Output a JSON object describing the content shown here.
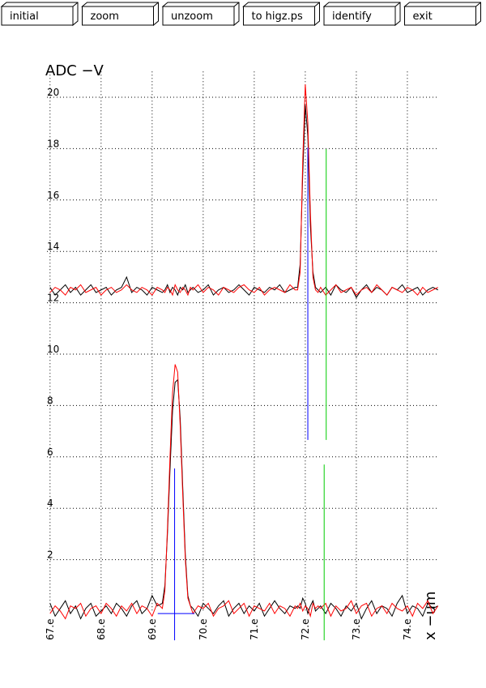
{
  "buttons": [
    "initial",
    "zoom",
    "unzoom",
    "to higz.ps",
    "identify",
    "exit"
  ],
  "chart_data": {
    "type": "line",
    "y_label": "ADC  −V",
    "x_label": "x −um",
    "xlim": [
      66.94,
      74.62
    ],
    "ylim": [
      0,
      21
    ],
    "xticks": [
      {
        "value": 67,
        "label": "67.e"
      },
      {
        "value": 68,
        "label": "68.e"
      },
      {
        "value": 69,
        "label": "69.e"
      },
      {
        "value": 70,
        "label": "70.e"
      },
      {
        "value": 71,
        "label": "71.e"
      },
      {
        "value": 72,
        "label": "72.e"
      },
      {
        "value": 73,
        "label": "73.e"
      },
      {
        "value": 74,
        "label": "74.e"
      }
    ],
    "yticks": [
      2,
      4,
      6,
      8,
      10,
      12,
      14,
      16,
      18,
      20
    ],
    "grid": true,
    "x": [
      67.0,
      67.1,
      67.2,
      67.3,
      67.4,
      67.5,
      67.6,
      67.7,
      67.8,
      67.9,
      68.0,
      68.1,
      68.2,
      68.3,
      68.4,
      68.5,
      68.6,
      68.7,
      68.8,
      68.9,
      69.0,
      69.1,
      69.2,
      69.25,
      69.3,
      69.35,
      69.4,
      69.45,
      69.5,
      69.55,
      69.6,
      69.65,
      69.7,
      69.75,
      69.8,
      69.9,
      70.0,
      70.1,
      70.2,
      70.3,
      70.4,
      70.5,
      70.6,
      70.7,
      70.8,
      70.9,
      71.0,
      71.1,
      71.2,
      71.3,
      71.4,
      71.5,
      71.6,
      71.7,
      71.8,
      71.85,
      71.9,
      71.95,
      72.0,
      72.05,
      72.1,
      72.15,
      72.2,
      72.25,
      72.3,
      72.4,
      72.5,
      72.6,
      72.7,
      72.8,
      72.9,
      73.0,
      73.1,
      73.2,
      73.3,
      73.4,
      73.5,
      73.6,
      73.7,
      73.8,
      73.9,
      74.0,
      74.1,
      74.2,
      74.3,
      74.4,
      74.5,
      74.6
    ],
    "series": [
      {
        "color": "#000000",
        "values": [
          0.3,
          -0.2,
          0.1,
          0.4,
          -0.1,
          0.2,
          -0.3,
          0.1,
          0.3,
          -0.2,
          0.0,
          0.2,
          -0.1,
          0.3,
          0.1,
          -0.2,
          0.2,
          0.4,
          -0.1,
          0.1,
          0.6,
          0.2,
          0.3,
          1.0,
          3.0,
          5.5,
          7.8,
          8.9,
          9.0,
          7.5,
          4.8,
          2.2,
          0.6,
          0.2,
          0.1,
          -0.2,
          0.3,
          0.1,
          -0.1,
          0.2,
          0.4,
          -0.2,
          0.1,
          0.3,
          -0.1,
          0.2,
          0.0,
          0.3,
          -0.2,
          0.1,
          0.4,
          0.1,
          -0.1,
          0.2,
          0.1,
          0.2,
          0.1,
          0.5,
          0.3,
          -0.1,
          0.2,
          0.4,
          0.0,
          0.1,
          0.2,
          -0.1,
          0.3,
          0.1,
          -0.2,
          0.2,
          0.0,
          0.3,
          -0.3,
          0.1,
          0.4,
          -0.1,
          0.2,
          0.1,
          -0.2,
          0.3,
          0.6,
          -0.1,
          0.2,
          0.1,
          -0.2,
          0.3,
          0.1,
          0.2
        ]
      },
      {
        "color": "#ff0000",
        "values": [
          -0.1,
          0.2,
          0.0,
          -0.3,
          0.2,
          0.1,
          0.3,
          -0.2,
          0.1,
          0.2,
          -0.1,
          0.3,
          0.1,
          -0.2,
          0.2,
          0.0,
          0.3,
          -0.1,
          0.2,
          0.1,
          -0.2,
          0.3,
          0.1,
          0.8,
          3.2,
          6.0,
          8.5,
          9.6,
          9.3,
          7.2,
          4.5,
          2.0,
          0.5,
          0.2,
          -0.1,
          0.2,
          0.1,
          0.3,
          -0.2,
          0.1,
          0.2,
          0.4,
          -0.1,
          0.1,
          0.3,
          -0.2,
          0.2,
          0.1,
          0.0,
          0.3,
          -0.1,
          0.2,
          0.1,
          -0.2,
          0.2,
          0.1,
          0.3,
          0.0,
          0.2,
          0.1,
          -0.2,
          0.3,
          0.1,
          0.2,
          0.1,
          0.3,
          -0.2,
          0.2,
          0.0,
          0.1,
          0.4,
          -0.1,
          0.2,
          0.3,
          -0.2,
          0.1,
          0.2,
          -0.1,
          0.3,
          0.1,
          0.0,
          0.2,
          -0.2,
          0.3,
          0.1,
          0.4,
          -0.1,
          0.2
        ]
      },
      {
        "color": "#000000",
        "values": [
          12.6,
          12.3,
          12.5,
          12.7,
          12.4,
          12.6,
          12.3,
          12.5,
          12.7,
          12.4,
          12.5,
          12.6,
          12.3,
          12.5,
          12.6,
          13.0,
          12.4,
          12.6,
          12.5,
          12.3,
          12.6,
          12.5,
          12.4,
          12.5,
          12.7,
          12.4,
          12.6,
          12.5,
          12.3,
          12.6,
          12.5,
          12.7,
          12.4,
          12.5,
          12.6,
          12.4,
          12.5,
          12.7,
          12.3,
          12.5,
          12.6,
          12.4,
          12.5,
          12.7,
          12.5,
          12.3,
          12.6,
          12.5,
          12.4,
          12.6,
          12.5,
          12.7,
          12.4,
          12.5,
          12.6,
          12.6,
          13.5,
          17.0,
          19.7,
          18.5,
          15.0,
          13.2,
          12.6,
          12.5,
          12.4,
          12.6,
          12.3,
          12.7,
          12.5,
          12.4,
          12.6,
          12.2,
          12.5,
          12.7,
          12.4,
          12.6,
          12.5,
          12.3,
          12.6,
          12.5,
          12.7,
          12.4,
          12.5,
          12.6,
          12.3,
          12.5,
          12.6,
          12.5
        ]
      },
      {
        "color": "#ff0000",
        "values": [
          12.4,
          12.6,
          12.5,
          12.3,
          12.6,
          12.5,
          12.7,
          12.4,
          12.5,
          12.6,
          12.3,
          12.5,
          12.6,
          12.4,
          12.5,
          12.7,
          12.5,
          12.4,
          12.6,
          12.5,
          12.3,
          12.6,
          12.5,
          12.4,
          12.6,
          12.5,
          12.3,
          12.7,
          12.5,
          12.4,
          12.6,
          12.5,
          12.3,
          12.6,
          12.5,
          12.7,
          12.4,
          12.6,
          12.5,
          12.3,
          12.6,
          12.5,
          12.4,
          12.6,
          12.7,
          12.5,
          12.4,
          12.6,
          12.3,
          12.5,
          12.6,
          12.5,
          12.4,
          12.7,
          12.5,
          12.5,
          13.2,
          17.5,
          20.5,
          19.0,
          15.5,
          13.0,
          12.5,
          12.4,
          12.6,
          12.3,
          12.5,
          12.7,
          12.4,
          12.5,
          12.6,
          12.3,
          12.5,
          12.6,
          12.4,
          12.7,
          12.5,
          12.3,
          12.6,
          12.5,
          12.4,
          12.6,
          12.5,
          12.3,
          12.6,
          12.4,
          12.5,
          12.6
        ]
      }
    ],
    "markers": [
      {
        "color": "#0000ff",
        "x": [
          72.05,
          72.05
        ],
        "y": [
          6.66,
          18.04
        ]
      },
      {
        "color": "#00cc00",
        "x": [
          72.41,
          72.41
        ],
        "y": [
          6.66,
          17.98
        ]
      },
      {
        "color": "#0000ff",
        "x": [
          69.44,
          69.44
        ],
        "y": [
          -1.14,
          5.55
        ]
      },
      {
        "color": "#0000ff",
        "x": [
          69.11,
          69.83
        ],
        "y": [
          -0.1,
          -0.1
        ]
      },
      {
        "color": "#00cc00",
        "x": [
          72.37,
          72.37
        ],
        "y": [
          -1.14,
          5.7
        ]
      }
    ]
  }
}
